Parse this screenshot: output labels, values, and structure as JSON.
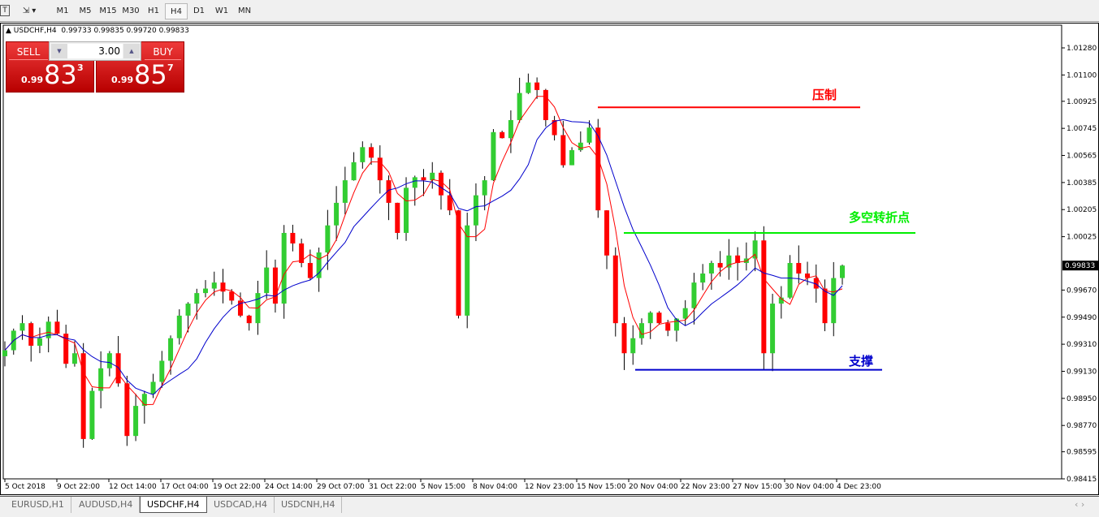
{
  "toolbar": {
    "timeframes": [
      "M1",
      "M5",
      "M15",
      "M30",
      "H1",
      "H4",
      "D1",
      "W1",
      "MN"
    ],
    "active": "H4"
  },
  "chart_header": {
    "symbol": "USDCHF,H4",
    "open": "0.99733",
    "high": "0.99835",
    "low": "0.99720",
    "close": "0.99833"
  },
  "trade_panel": {
    "sell_label": "SELL",
    "buy_label": "BUY",
    "lot": "3.00",
    "sell_prefix": "0.99",
    "sell_big": "83",
    "sell_sup": "3",
    "buy_prefix": "0.99",
    "buy_big": "85",
    "buy_sup": "7"
  },
  "annotations": {
    "resistance": {
      "label": "压制",
      "price": 1.00885,
      "color": "#ff0000"
    },
    "pivot": {
      "label": "多空转折点",
      "price": 1.0005,
      "color": "#00ee00"
    },
    "support": {
      "label": "支撑",
      "price": 0.9914,
      "color": "#0000cc"
    }
  },
  "tabs": [
    "EURUSD,H1",
    "AUDUSD,H4",
    "USDCHF,H4",
    "USDCAD,H4",
    "USDCNH,H4"
  ],
  "active_tab": "USDCHF,H4",
  "chart_data": {
    "type": "candlestick",
    "ylim": [
      0.98415,
      1.0128
    ],
    "y_ticks": [
      "1.01280",
      "1.01100",
      "1.00925",
      "1.00745",
      "1.00565",
      "1.00385",
      "1.00205",
      "1.00025",
      "0.99670",
      "0.99490",
      "0.99310",
      "0.99130",
      "0.98950",
      "0.98770",
      "0.98595",
      "0.98415"
    ],
    "current_price": "0.99833",
    "x_labels": [
      "5 Oct 2018",
      "9 Oct 22:00",
      "12 Oct 14:00",
      "17 Oct 04:00",
      "19 Oct 22:00",
      "24 Oct 14:00",
      "29 Oct 07:00",
      "31 Oct 22:00",
      "5 Nov 15:00",
      "8 Nov 04:00",
      "12 Nov 23:00",
      "15 Nov 15:00",
      "20 Nov 04:00",
      "22 Nov 23:00",
      "27 Nov 15:00",
      "30 Nov 04:00",
      "4 Dec 23:00"
    ],
    "bull_color": "#32cd32",
    "bear_color": "#ff0000",
    "ma_fast_color": "#ff0000",
    "ma_slow_color": "#0000cc",
    "closes": [
      0.9927,
      0.994,
      0.9945,
      0.993,
      0.9935,
      0.9946,
      0.9938,
      0.9918,
      0.9925,
      0.9868,
      0.99,
      0.9915,
      0.9925,
      0.9905,
      0.987,
      0.989,
      0.9898,
      0.9906,
      0.992,
      0.9935,
      0.995,
      0.9958,
      0.9965,
      0.9968,
      0.9972,
      0.9966,
      0.996,
      0.995,
      0.9945,
      0.9965,
      0.9982,
      0.9958,
      1.0005,
      0.9998,
      0.9985,
      0.9975,
      0.9992,
      1.001,
      1.0025,
      1.004,
      1.0052,
      1.0062,
      1.0055,
      1.004,
      1.0025,
      1.0005,
      1.0035,
      1.0042,
      1.004,
      1.0045,
      1.003,
      1.002,
      0.995,
      1.001,
      1.003,
      1.004,
      1.0072,
      1.0068,
      1.008,
      1.0098,
      1.0105,
      1.01,
      1.008,
      1.007,
      1.005,
      1.006,
      1.0065,
      1.0075,
      1.002,
      0.999,
      0.9945,
      0.9925,
      0.9935,
      0.9945,
      0.9952,
      0.9945,
      0.994,
      0.9948,
      0.9955,
      0.9972,
      0.9978,
      0.9985,
      0.9982,
      0.999,
      0.9985,
      0.9988,
      1.0,
      0.9925,
      0.9958,
      0.9962,
      0.9985,
      0.9978,
      0.9975,
      0.9968,
      0.9945,
      0.9975,
      0.99833
    ]
  }
}
